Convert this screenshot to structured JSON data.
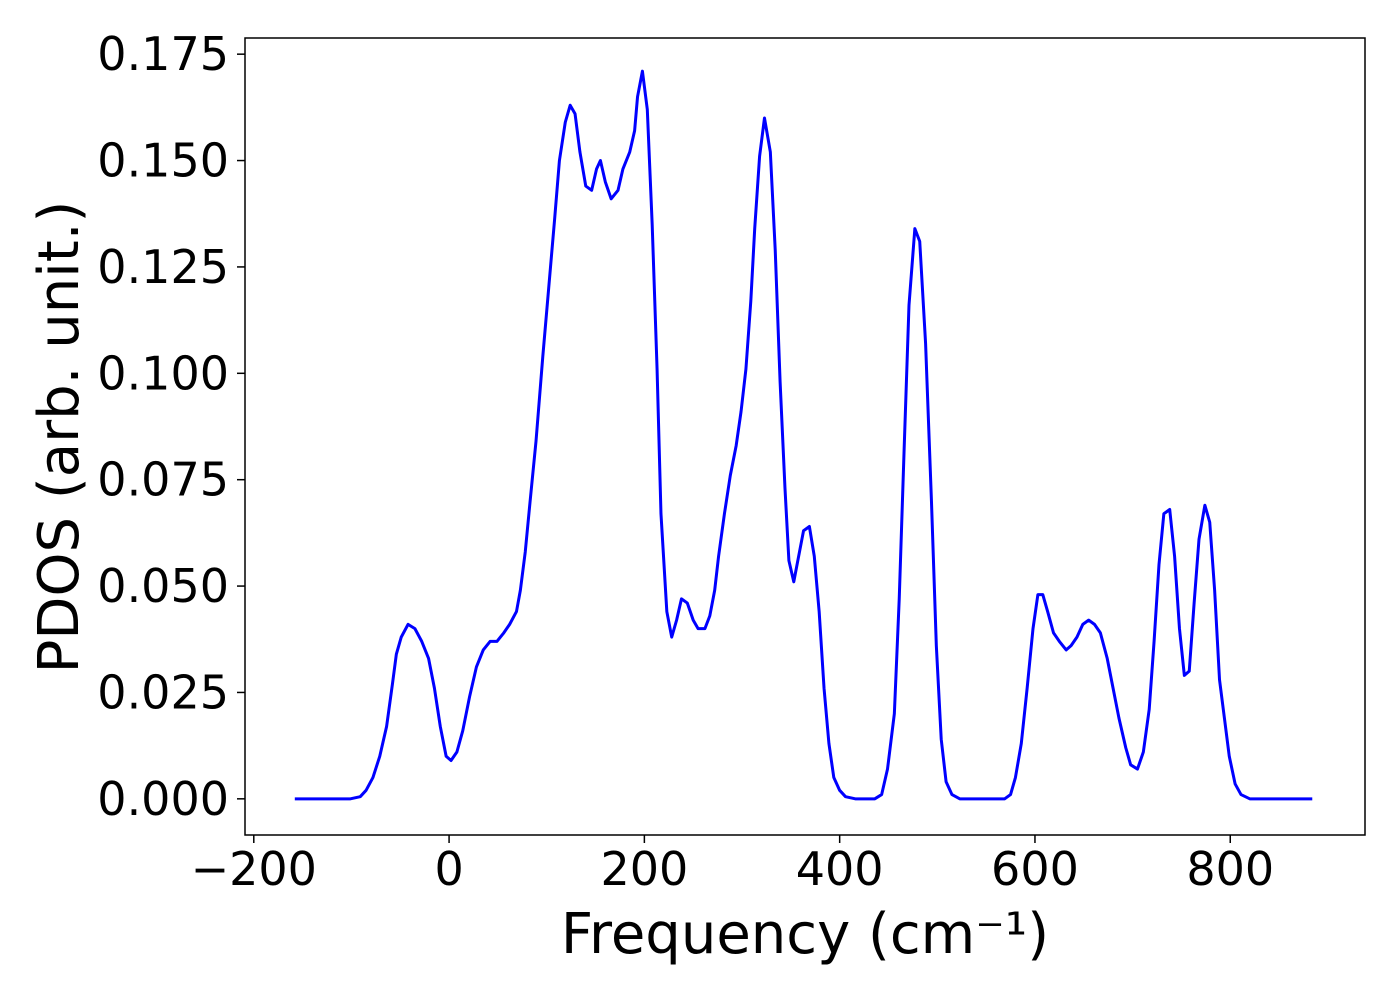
{
  "chart_data": {
    "type": "line",
    "xlabel": "Frequency (cm⁻¹)",
    "ylabel": "PDOS (arb. unit.)",
    "color": "#0000ff",
    "x": [
      -158,
      -101,
      -91,
      -85,
      -78,
      -71,
      -64,
      -58,
      -54,
      -49,
      -42,
      -35,
      -28,
      -21,
      -15,
      -9,
      -3,
      2,
      8,
      14,
      21,
      28,
      35,
      42,
      49,
      56,
      62,
      69,
      73,
      78,
      83,
      89,
      96,
      102,
      108,
      113,
      119,
      124,
      129,
      134,
      140,
      146,
      151,
      155,
      160,
      166,
      173,
      178,
      185,
      190,
      193,
      198,
      203,
      208,
      213,
      217,
      223,
      228,
      233,
      238,
      244,
      250,
      255,
      262,
      267,
      272,
      276,
      282,
      288,
      294,
      299,
      304,
      309,
      313,
      318,
      323,
      329,
      334,
      339,
      344,
      348,
      353,
      358,
      363,
      369,
      374,
      379,
      384,
      389,
      394,
      400,
      406,
      416,
      436,
      443,
      449,
      456,
      461,
      466,
      471,
      477,
      482,
      488,
      494,
      499,
      504,
      509,
      515,
      523,
      569,
      575,
      580,
      586,
      592,
      598,
      603,
      608,
      613,
      619,
      625,
      632,
      637,
      643,
      649,
      655,
      661,
      667,
      674,
      680,
      686,
      693,
      698,
      705,
      711,
      717,
      722,
      727,
      732,
      738,
      743,
      748,
      753,
      758,
      763,
      768,
      774,
      779,
      784,
      789,
      794,
      799,
      805,
      811,
      820,
      884
    ],
    "values": [
      0,
      0,
      0.0005,
      0.002,
      0.005,
      0.01,
      0.017,
      0.027,
      0.034,
      0.038,
      0.041,
      0.04,
      0.037,
      0.033,
      0.026,
      0.017,
      0.01,
      0.009,
      0.011,
      0.016,
      0.024,
      0.031,
      0.035,
      0.037,
      0.037,
      0.039,
      0.041,
      0.044,
      0.049,
      0.058,
      0.07,
      0.084,
      0.104,
      0.12,
      0.136,
      0.15,
      0.159,
      0.163,
      0.161,
      0.152,
      0.144,
      0.143,
      0.148,
      0.15,
      0.145,
      0.141,
      0.143,
      0.148,
      0.152,
      0.157,
      0.165,
      0.171,
      0.162,
      0.135,
      0.101,
      0.067,
      0.044,
      0.038,
      0.042,
      0.047,
      0.046,
      0.042,
      0.04,
      0.04,
      0.043,
      0.049,
      0.057,
      0.067,
      0.076,
      0.083,
      0.091,
      0.101,
      0.117,
      0.134,
      0.151,
      0.16,
      0.152,
      0.129,
      0.098,
      0.073,
      0.056,
      0.051,
      0.057,
      0.063,
      0.064,
      0.057,
      0.044,
      0.026,
      0.013,
      0.005,
      0.002,
      0.0005,
      0,
      0,
      0.001,
      0.007,
      0.02,
      0.047,
      0.082,
      0.116,
      0.134,
      0.131,
      0.107,
      0.07,
      0.036,
      0.014,
      0.004,
      0.001,
      0,
      0,
      0.001,
      0.005,
      0.013,
      0.026,
      0.04,
      0.048,
      0.048,
      0.044,
      0.039,
      0.037,
      0.035,
      0.036,
      0.038,
      0.041,
      0.042,
      0.041,
      0.039,
      0.033,
      0.026,
      0.019,
      0.012,
      0.008,
      0.007,
      0.011,
      0.021,
      0.037,
      0.055,
      0.067,
      0.068,
      0.057,
      0.04,
      0.029,
      0.03,
      0.046,
      0.061,
      0.069,
      0.065,
      0.049,
      0.028,
      0.019,
      0.01,
      0.0035,
      0.001,
      0,
      0
    ],
    "xlim": [
      -209,
      938
    ],
    "ylim": [
      -0.0085,
      0.1788
    ],
    "xticks": [
      {
        "value": -200,
        "label": "−200"
      },
      0,
      200,
      400,
      600,
      800
    ],
    "yticks": [
      {
        "value": 0,
        "label": "0.000"
      },
      0.025,
      {
        "value": 0.05,
        "label": "0.050"
      },
      0.075,
      {
        "value": 0.1,
        "label": "0.100"
      },
      0.125,
      {
        "value": 0.15,
        "label": "0.150"
      },
      0.175
    ]
  }
}
